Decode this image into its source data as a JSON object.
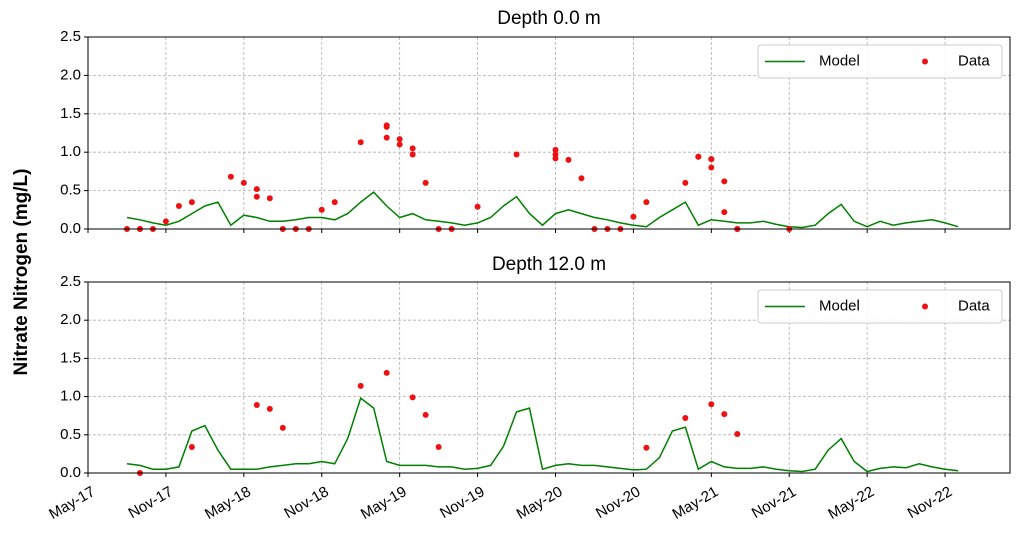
{
  "chart_data": [
    {
      "type": "line",
      "title": "Depth 0.0 m",
      "ylabel": "Nitrate Nitrogen (mg/L)",
      "xlim": [
        "2017-05",
        "2023-04"
      ],
      "ylim": [
        0,
        2.5
      ],
      "xticks": [
        "2017-05",
        "2017-11",
        "2018-05",
        "2018-11",
        "2019-05",
        "2019-11",
        "2020-05",
        "2020-11",
        "2021-05",
        "2021-11",
        "2022-05",
        "2022-11"
      ],
      "yticks": [
        {
          "value": 0,
          "label": "0.0"
        },
        0.5,
        {
          "value": 1,
          "label": "1.0"
        },
        1.5,
        {
          "value": 2,
          "label": "2.0"
        },
        2.5
      ],
      "grid": true,
      "legend": "upper right",
      "series": [
        {
          "name": "Model",
          "type": "line",
          "color": "#008000",
          "x": [
            "2017-08",
            "2017-09",
            "2017-10",
            "2017-11",
            "2017-12",
            "2018-01",
            "2018-02",
            "2018-03",
            "2018-04",
            "2018-05",
            "2018-06",
            "2018-07",
            "2018-08",
            "2018-09",
            "2018-10",
            "2018-11",
            "2018-12",
            "2019-01",
            "2019-02",
            "2019-03",
            "2019-04",
            "2019-05",
            "2019-06",
            "2019-07",
            "2019-08",
            "2019-09",
            "2019-10",
            "2019-11",
            "2019-12",
            "2020-01",
            "2020-02",
            "2020-03",
            "2020-04",
            "2020-05",
            "2020-06",
            "2020-07",
            "2020-08",
            "2020-09",
            "2020-10",
            "2020-11",
            "2020-12",
            "2021-01",
            "2021-02",
            "2021-03",
            "2021-04",
            "2021-05",
            "2021-06",
            "2021-07",
            "2021-08",
            "2021-09",
            "2021-10",
            "2021-11",
            "2021-12",
            "2022-01",
            "2022-02",
            "2022-03",
            "2022-04",
            "2022-05",
            "2022-06",
            "2022-07",
            "2022-08",
            "2022-09",
            "2022-10",
            "2022-11",
            "2022-12"
          ],
          "values": [
            0.15,
            0.12,
            0.08,
            0.05,
            0.1,
            0.2,
            0.3,
            0.35,
            0.05,
            0.18,
            0.15,
            0.1,
            0.1,
            0.12,
            0.15,
            0.15,
            0.12,
            0.2,
            0.35,
            0.48,
            0.3,
            0.15,
            0.2,
            0.12,
            0.1,
            0.08,
            0.05,
            0.08,
            0.15,
            0.3,
            0.42,
            0.2,
            0.05,
            0.2,
            0.25,
            0.2,
            0.15,
            0.12,
            0.08,
            0.05,
            0.03,
            0.15,
            0.25,
            0.35,
            0.05,
            0.12,
            0.1,
            0.08,
            0.08,
            0.1,
            0.06,
            0.03,
            0.02,
            0.05,
            0.2,
            0.32,
            0.1,
            0.03,
            0.1,
            0.05,
            0.08,
            0.1,
            0.12,
            0.08,
            0.03
          ]
        },
        {
          "name": "Data",
          "type": "scatter",
          "color": "#ee1111",
          "x": [
            "2017-08",
            "2017-09",
            "2017-09",
            "2017-10",
            "2017-11",
            "2017-12",
            "2018-01",
            "2018-04",
            "2018-05",
            "2018-06",
            "2018-06",
            "2018-07",
            "2018-08",
            "2018-09",
            "2018-10",
            "2018-11",
            "2018-12",
            "2019-02",
            "2019-04",
            "2019-04",
            "2019-04",
            "2019-05",
            "2019-05",
            "2019-06",
            "2019-06",
            "2019-07",
            "2019-08",
            "2019-09",
            "2019-11",
            "2020-02",
            "2020-05",
            "2020-05",
            "2020-05",
            "2020-06",
            "2020-07",
            "2020-08",
            "2020-09",
            "2020-10",
            "2020-11",
            "2020-12",
            "2021-03",
            "2021-04",
            "2021-04",
            "2021-05",
            "2021-05",
            "2021-05",
            "2021-06",
            "2021-06",
            "2021-07",
            "2021-07",
            "2021-11"
          ],
          "values": [
            0,
            0,
            0,
            0,
            0.1,
            0.3,
            0.35,
            0.68,
            0.6,
            0.52,
            0.42,
            0.4,
            0,
            0,
            0,
            0.25,
            0.35,
            1.13,
            1.35,
            1.33,
            1.19,
            1.17,
            1.1,
            1.05,
            0.97,
            0.6,
            0,
            0,
            0.29,
            0.97,
            1.03,
            0.92,
            0.97,
            0.9,
            0.66,
            0,
            0,
            0,
            0.16,
            0.35,
            0.6,
            0.94,
            0.94,
            0.91,
            0.91,
            0.8,
            0.62,
            0.22,
            0,
            0,
            0
          ]
        }
      ]
    },
    {
      "type": "line",
      "title": "Depth 12.0 m",
      "xlim": [
        "2017-05",
        "2023-04"
      ],
      "ylim": [
        0,
        2.5
      ],
      "xticks": [
        {
          "value": "2017-05",
          "label": "May-17"
        },
        {
          "value": "2017-11",
          "label": "Nov-17"
        },
        {
          "value": "2018-05",
          "label": "May-18"
        },
        {
          "value": "2018-11",
          "label": "Nov-18"
        },
        {
          "value": "2019-05",
          "label": "May-19"
        },
        {
          "value": "2019-11",
          "label": "Nov-19"
        },
        {
          "value": "2020-05",
          "label": "May-20"
        },
        {
          "value": "2020-11",
          "label": "Nov-20"
        },
        {
          "value": "2021-05",
          "label": "May-21"
        },
        {
          "value": "2021-11",
          "label": "Nov-21"
        },
        {
          "value": "2022-05",
          "label": "May-22"
        },
        {
          "value": "2022-11",
          "label": "Nov-22"
        }
      ],
      "yticks": [
        {
          "value": 0,
          "label": "0.0"
        },
        0.5,
        {
          "value": 1,
          "label": "1.0"
        },
        1.5,
        {
          "value": 2,
          "label": "2.0"
        },
        2.5
      ],
      "grid": true,
      "legend": "upper right",
      "series": [
        {
          "name": "Model",
          "type": "line",
          "color": "#008000",
          "x": [
            "2017-08",
            "2017-09",
            "2017-10",
            "2017-11",
            "2017-12",
            "2018-01",
            "2018-02",
            "2018-03",
            "2018-04",
            "2018-05",
            "2018-06",
            "2018-07",
            "2018-08",
            "2018-09",
            "2018-10",
            "2018-11",
            "2018-12",
            "2019-01",
            "2019-02",
            "2019-03",
            "2019-04",
            "2019-05",
            "2019-06",
            "2019-07",
            "2019-08",
            "2019-09",
            "2019-10",
            "2019-11",
            "2019-12",
            "2020-01",
            "2020-02",
            "2020-03",
            "2020-04",
            "2020-05",
            "2020-06",
            "2020-07",
            "2020-08",
            "2020-09",
            "2020-10",
            "2020-11",
            "2020-12",
            "2021-01",
            "2021-02",
            "2021-03",
            "2021-04",
            "2021-05",
            "2021-06",
            "2021-07",
            "2021-08",
            "2021-09",
            "2021-10",
            "2021-11",
            "2021-12",
            "2022-01",
            "2022-02",
            "2022-03",
            "2022-04",
            "2022-05",
            "2022-06",
            "2022-07",
            "2022-08",
            "2022-09",
            "2022-10",
            "2022-11",
            "2022-12"
          ],
          "values": [
            0.12,
            0.1,
            0.05,
            0.05,
            0.08,
            0.55,
            0.62,
            0.3,
            0.05,
            0.05,
            0.05,
            0.08,
            0.1,
            0.12,
            0.12,
            0.15,
            0.12,
            0.45,
            0.98,
            0.85,
            0.15,
            0.1,
            0.1,
            0.1,
            0.08,
            0.08,
            0.05,
            0.06,
            0.1,
            0.35,
            0.8,
            0.85,
            0.05,
            0.1,
            0.12,
            0.1,
            0.1,
            0.08,
            0.06,
            0.04,
            0.05,
            0.2,
            0.55,
            0.6,
            0.05,
            0.15,
            0.08,
            0.06,
            0.06,
            0.08,
            0.05,
            0.03,
            0.02,
            0.05,
            0.3,
            0.45,
            0.15,
            0.02,
            0.06,
            0.08,
            0.07,
            0.12,
            0.08,
            0.05,
            0.03
          ]
        },
        {
          "name": "Data",
          "type": "scatter",
          "color": "#ee1111",
          "x": [
            "2017-09",
            "2018-01",
            "2018-06",
            "2018-07",
            "2018-08",
            "2019-02",
            "2019-04",
            "2019-06",
            "2019-07",
            "2019-08",
            "2020-12",
            "2021-03",
            "2021-05",
            "2021-06",
            "2021-07"
          ],
          "values": [
            0,
            0.34,
            0.89,
            0.84,
            0.59,
            1.14,
            1.31,
            0.99,
            0.76,
            0.34,
            0.33,
            0.72,
            0.9,
            0.77,
            0.51
          ]
        }
      ]
    }
  ]
}
